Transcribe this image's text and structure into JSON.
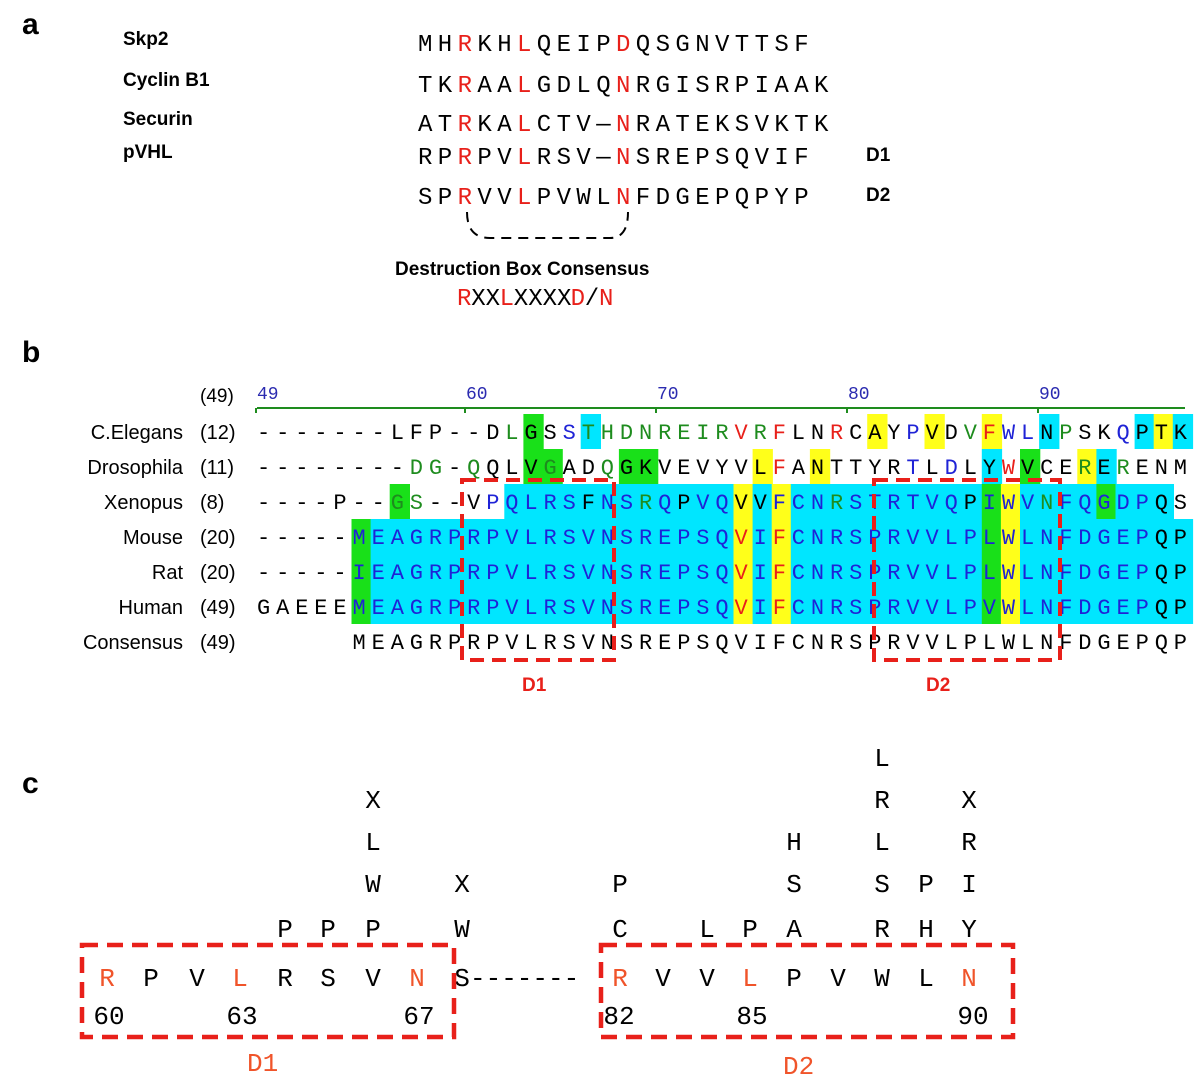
{
  "colors": {
    "red": "#e8201a",
    "orange": "#f0542a",
    "green_text": "#1e8c1e",
    "blue_text": "#1f23d6",
    "cyan_bg": "#00e6ff",
    "green_bg": "#19e019",
    "yellow_bg": "#ffff1a",
    "ruler_blue": "#2b2bb0",
    "ruler_green": "#1e8c1e"
  },
  "panel_a": {
    "label": "a",
    "rows": [
      {
        "name": "Skp2",
        "seq": "MHRKHLQEIPDQSGNVTTSF",
        "red": [
          2,
          5,
          10
        ],
        "tag": ""
      },
      {
        "name": "Cyclin B1",
        "seq": "TKRAALGDLQNRGISRPIAAK",
        "red": [
          2,
          5,
          10
        ],
        "tag": ""
      },
      {
        "name": "Securin",
        "seq": "ATRKALCTV—NRATEKSVKTK",
        "red": [
          2,
          5,
          10
        ],
        "tag": ""
      },
      {
        "name": "pVHL",
        "seq": "RPRPVLRSV—NSREPSQVIF",
        "red": [
          2,
          5,
          10
        ],
        "tag": "D1"
      },
      {
        "name": "",
        "seq": "SPRVVLPVWLNFDGEPQPYP",
        "red": [
          2,
          5,
          10
        ],
        "tag": "D2"
      }
    ],
    "consensus_title": "Destruction Box Consensus",
    "consensus_parts": [
      {
        "text": "R",
        "color": "red"
      },
      {
        "text": "XX",
        "color": "black"
      },
      {
        "text": "L",
        "color": "red"
      },
      {
        "text": "XXXX",
        "color": "black"
      },
      {
        "text": "D",
        "color": "red"
      },
      {
        "text": "/",
        "color": "black"
      },
      {
        "text": "N",
        "color": "red"
      }
    ]
  },
  "panel_b": {
    "label": "b",
    "ruler_label": "(49)",
    "ruler_ticks": [
      "49",
      "60",
      "70",
      "80",
      "90"
    ],
    "rows": [
      {
        "name": "C.Elegans",
        "num": "(12)",
        "seq": "-------LFP--DLGSSTHDNREIRVRFLNRCAYPVDVFWLNPSKQPTK",
        "colors": "KKKKKKKKKKKKKGKKBGGGGGGGGRGRKKRKKKBKKGRBBKGKKBKK",
        "bgs": "..............G..C..............Y..Y..Y..C....CYC....C.."
      },
      {
        "name": "Drosophila",
        "num": "(11)",
        "seq": "--------DG-QQLVGADQGKVEVYVLFANTTYRTLDLYWVCERERENM",
        "colors": "KKKKKKKKGGKGKKKGKKGKKKKKKKKRKKKKKKBKBKKRKKKGKGKKK",
        "bgs": "..............GG...GG.....Y..Y........C.G..YC....G.G.."
      },
      {
        "name": "Xenopus",
        "num": "(8)",
        "seq": "----P--GS--VPQLRSFNSRQPVQVVFCNRSTRTVQPIWVNFQGDPQS",
        "colors": "KKKKKKKGGKKKBBBBBKBBGBKBBKKBBBGBBBBBBKBBBGBBBBB",
        "bgs": ".......G.....CCCCCCCCCCCCYCYCCCCCCCCCCGYCCCCGCCC"
      },
      {
        "name": "Mouse",
        "num": "(20)",
        "seq": "-----MEAGRPRPVLRSVNSREPSQVIFCNRSPRVVLPLWLNFDGEPQP",
        "colors": "KKKKKBBBBBBBBBBBBBBBBBBBBRBRBBBBBBBBBBBBBBBBBBB",
        "bgs": ".....GCCCCCCCCCCCCCCCCCCCYCYCCCCCCCCCCGYCCCCCCCCCC"
      },
      {
        "name": "Rat",
        "num": "(20)",
        "seq": "-----IEAGRPRPVLRSVNSREPSQVIFCNRSPRVVLPLWLNFDGEPQP",
        "colors": "KKKKKBBBBBBBBBBBBBBBBBBBBRBRBBBBBBBBBBBBBBBBBBB",
        "bgs": ".....GCCCCCCCCCCCCCCCCCCCYCYCCCCCCCCCCGYCCCCCCCCCC"
      },
      {
        "name": "Human",
        "num": "(49)",
        "seq": "GAEEEMEAGRPRPVLRSVNSREPSQVIFCNRSPRVVLPVWLNFDGEPQP",
        "colors": "KKKKKBBBBBBBBBBBBBBBBBBBBRBRBBBBBBBBBBBBBBBBBBB",
        "bgs": ".....GCCCCCCCCCCCCCCCCCCCYCYCCCCCCCCCCGYCCCCCCCCCC"
      },
      {
        "name": "Consensus",
        "num": "(49)",
        "seq": "     MEAGRPRPVLRSVNSREPSQVIFCNRSPRVVLPLWLNFDGEPQP",
        "colors": "KKKKKKKKKKKKKKKKKKKKKKKKKKKKKKKKKKKKKKKKKKKKKKKK",
        "bgs": ""
      }
    ],
    "box_labels": [
      "D1",
      "D2"
    ]
  },
  "panel_c": {
    "label": "c",
    "main_row": [
      {
        "t": "R",
        "c": "orange"
      },
      {
        "t": "P",
        "c": "black"
      },
      {
        "t": "V",
        "c": "black"
      },
      {
        "t": "L",
        "c": "orange"
      },
      {
        "t": "R",
        "c": "black"
      },
      {
        "t": "S",
        "c": "black"
      },
      {
        "t": "V",
        "c": "black"
      },
      {
        "t": "N",
        "c": "orange"
      },
      {
        "t": "S",
        "c": "black"
      },
      {
        "t": "-------",
        "c": "black"
      },
      {
        "t": "R",
        "c": "orange"
      },
      {
        "t": "V",
        "c": "black"
      },
      {
        "t": "V",
        "c": "black"
      },
      {
        "t": "L",
        "c": "orange"
      },
      {
        "t": "P",
        "c": "black"
      },
      {
        "t": "V",
        "c": "black"
      },
      {
        "t": "W",
        "c": "black"
      },
      {
        "t": "L",
        "c": "black"
      },
      {
        "t": "N",
        "c": "orange"
      }
    ],
    "numbers": [
      "60",
      "63",
      "67",
      "82",
      "85",
      "90"
    ],
    "stacks": [
      {
        "col": 3,
        "letters": [
          "P"
        ]
      },
      {
        "col": 4,
        "letters": [
          "P"
        ]
      },
      {
        "col": 6,
        "letters": [
          "X",
          "L",
          "W",
          "P"
        ]
      },
      {
        "col": 8,
        "letters": [
          "X",
          "W"
        ]
      },
      {
        "col": 10,
        "letters": [
          "P",
          "C"
        ]
      },
      {
        "col": 12,
        "letters": [
          "L"
        ]
      },
      {
        "col": 13,
        "letters": [
          "P"
        ]
      },
      {
        "col": 14,
        "letters": [
          "H",
          "S",
          "A"
        ]
      },
      {
        "col": 16,
        "letters": [
          "L",
          "R",
          "L",
          "S",
          "R"
        ]
      },
      {
        "col": 17,
        "letters": [
          "P",
          "H"
        ]
      },
      {
        "col": 18,
        "letters": [
          "X",
          "R",
          "I",
          "Y"
        ]
      }
    ],
    "box_labels": [
      "D1",
      "D2"
    ]
  }
}
